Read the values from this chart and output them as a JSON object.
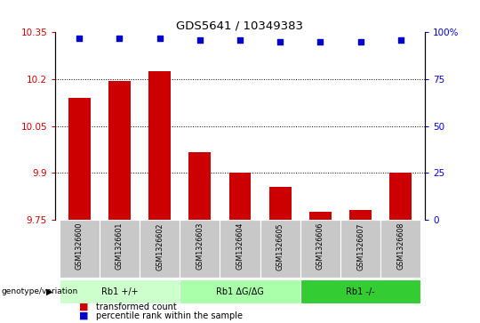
{
  "title": "GDS5641 / 10349383",
  "samples": [
    "GSM1326600",
    "GSM1326601",
    "GSM1326602",
    "GSM1326603",
    "GSM1326604",
    "GSM1326605",
    "GSM1326606",
    "GSM1326607",
    "GSM1326608"
  ],
  "transformed_counts": [
    10.14,
    10.195,
    10.225,
    9.965,
    9.9,
    9.855,
    9.775,
    9.782,
    9.9
  ],
  "percentile_ranks": [
    97,
    97,
    97,
    96,
    96,
    95,
    95,
    95,
    96
  ],
  "ymin": 9.75,
  "ymax": 10.35,
  "y_ticks": [
    9.75,
    9.9,
    10.05,
    10.2,
    10.35
  ],
  "y_tick_labels": [
    "9.75",
    "9.9",
    "10.05",
    "10.2",
    "10.35"
  ],
  "y2min": 0,
  "y2max": 100,
  "y2_ticks": [
    0,
    25,
    50,
    75,
    100
  ],
  "y2_tick_labels": [
    "0",
    "25",
    "50",
    "75",
    "100%"
  ],
  "dotted_lines": [
    9.9,
    10.05,
    10.2
  ],
  "bar_color": "#cc0000",
  "dot_color": "#0000cc",
  "bar_width": 0.55,
  "groups": [
    {
      "label": "Rb1 +/+",
      "samples": [
        0,
        1,
        2
      ],
      "color": "#ccffcc"
    },
    {
      "label": "Rb1 ΔG/ΔG",
      "samples": [
        3,
        4,
        5
      ],
      "color": "#aaffaa"
    },
    {
      "label": "Rb1 -/-",
      "samples": [
        6,
        7,
        8
      ],
      "color": "#33cc33"
    }
  ],
  "group_label_prefix": "genotype/variation",
  "legend_bar_label": "transformed count",
  "legend_dot_label": "percentile rank within the sample",
  "left_tick_color": "#cc0000",
  "right_tick_color": "#0000cc",
  "sample_area_bg": "#c8c8c8",
  "plot_bg": "white"
}
